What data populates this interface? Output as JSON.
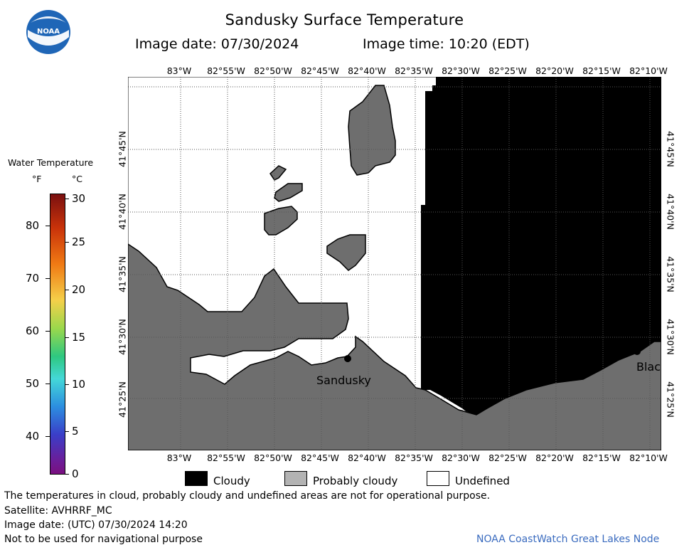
{
  "header": {
    "title": "Sandusky Surface Temperature",
    "image_date": "Image date: 07/30/2024",
    "image_time": "Image time: 10:20 (EDT)"
  },
  "logo": {
    "text": "NOAA"
  },
  "map": {
    "lon_labels": [
      "83°W",
      "82°55'W",
      "82°50'W",
      "82°45'W",
      "82°40'W",
      "82°35'W",
      "82°30'W",
      "82°25'W",
      "82°20'W",
      "82°15'W",
      "82°10'W"
    ],
    "lat_labels": [
      "41°45'N",
      "41°40'N",
      "41°35'N",
      "41°30'N",
      "41°25'N"
    ],
    "places": {
      "sandusky": "Sandusky",
      "blac": "Blac"
    },
    "colors": {
      "land": "#6e6e6e",
      "cloudy": "#000000",
      "undefined": "#ffffff"
    }
  },
  "colorbar": {
    "title": "Water Temperature",
    "unit_f": "°F",
    "unit_c": "°C",
    "f_ticks": [
      "80",
      "70",
      "60",
      "50",
      "40"
    ],
    "c_ticks": [
      "30",
      "25",
      "20",
      "15",
      "10",
      "5",
      "0"
    ]
  },
  "legend": {
    "cloudy": "Cloudy",
    "probably_cloudy": "Probably cloudy",
    "undefined": "Undefined"
  },
  "footer": {
    "note": "The temperatures in cloud, probably cloudy and undefined areas are not for operational purpose.",
    "satellite": "Satellite: AVHRRF_MC",
    "utc_date": "Image date: (UTC) 07/30/2024  14:20",
    "nav": "Not to be used for navigational purpose",
    "credit": "NOAA CoastWatch Great Lakes Node"
  }
}
